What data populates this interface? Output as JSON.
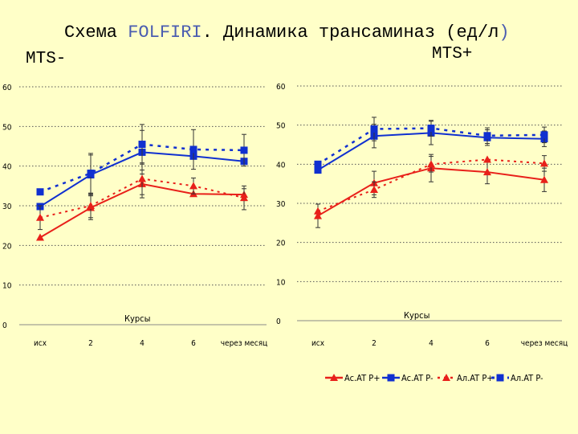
{
  "title": {
    "prefix": "Схема ",
    "regimen": "FOLFIRI",
    "dot": ".",
    "main": " Динамика трансаминаз (ед/л",
    "close": ")"
  },
  "colors": {
    "ast": "#e8201a",
    "alt": "#1030d0"
  },
  "chart_data": [
    {
      "type": "line",
      "group_label": "MTS-",
      "categories": [
        "исх",
        "2",
        "4",
        "6",
        "через месяц"
      ],
      "xlabel": "Курсы",
      "ylim": [
        0,
        60
      ],
      "yticks": [
        "0",
        "10",
        "20",
        "30",
        "40",
        "50",
        "60"
      ],
      "grid": true,
      "series": [
        {
          "name": "Ac.AT P+",
          "values": [
            22,
            29.5,
            35.5,
            33,
            32.8
          ],
          "errors": [
            0,
            3,
            3.5,
            0,
            1.5
          ]
        },
        {
          "name": "Ac.AT P-",
          "values": [
            29.8,
            37.8,
            43.5,
            42.5,
            41.2
          ],
          "errors": [
            0,
            5,
            5.5,
            0,
            0
          ]
        },
        {
          "name": "Ал.AT P+",
          "values": [
            27,
            30,
            36.8,
            35,
            32
          ],
          "errors": [
            3,
            3,
            4,
            2,
            3
          ]
        },
        {
          "name": "Ал.AT P-",
          "values": [
            33.5,
            38.2,
            45.5,
            44.2,
            44
          ],
          "errors": [
            0,
            5,
            5,
            5,
            4
          ]
        }
      ]
    },
    {
      "type": "line",
      "group_label": "MTS+",
      "categories": [
        "исх",
        "2",
        "4",
        "6",
        "через месяц"
      ],
      "xlabel": "Курсы",
      "ylim": [
        0,
        60
      ],
      "yticks": [
        "0",
        "10",
        "20",
        "30",
        "40",
        "50",
        "60"
      ],
      "grid": true,
      "series": [
        {
          "name": "Ac.AT P+",
          "values": [
            26.8,
            35.2,
            39,
            38,
            36
          ],
          "errors": [
            3,
            3,
            3.5,
            3,
            3
          ]
        },
        {
          "name": "Ac.AT P-",
          "values": [
            38.5,
            47.2,
            48,
            46.8,
            46.5
          ],
          "errors": [
            0,
            3,
            3,
            2,
            2
          ]
        },
        {
          "name": "Ал.AT P+",
          "values": [
            28,
            33.5,
            40,
            41.2,
            40.2
          ],
          "errors": [
            0,
            2,
            2,
            0,
            2
          ]
        },
        {
          "name": "Ал.AT P-",
          "values": [
            40,
            49,
            49.2,
            47.3,
            47.5
          ],
          "errors": [
            0,
            3,
            2,
            2,
            2
          ]
        }
      ]
    }
  ]
}
